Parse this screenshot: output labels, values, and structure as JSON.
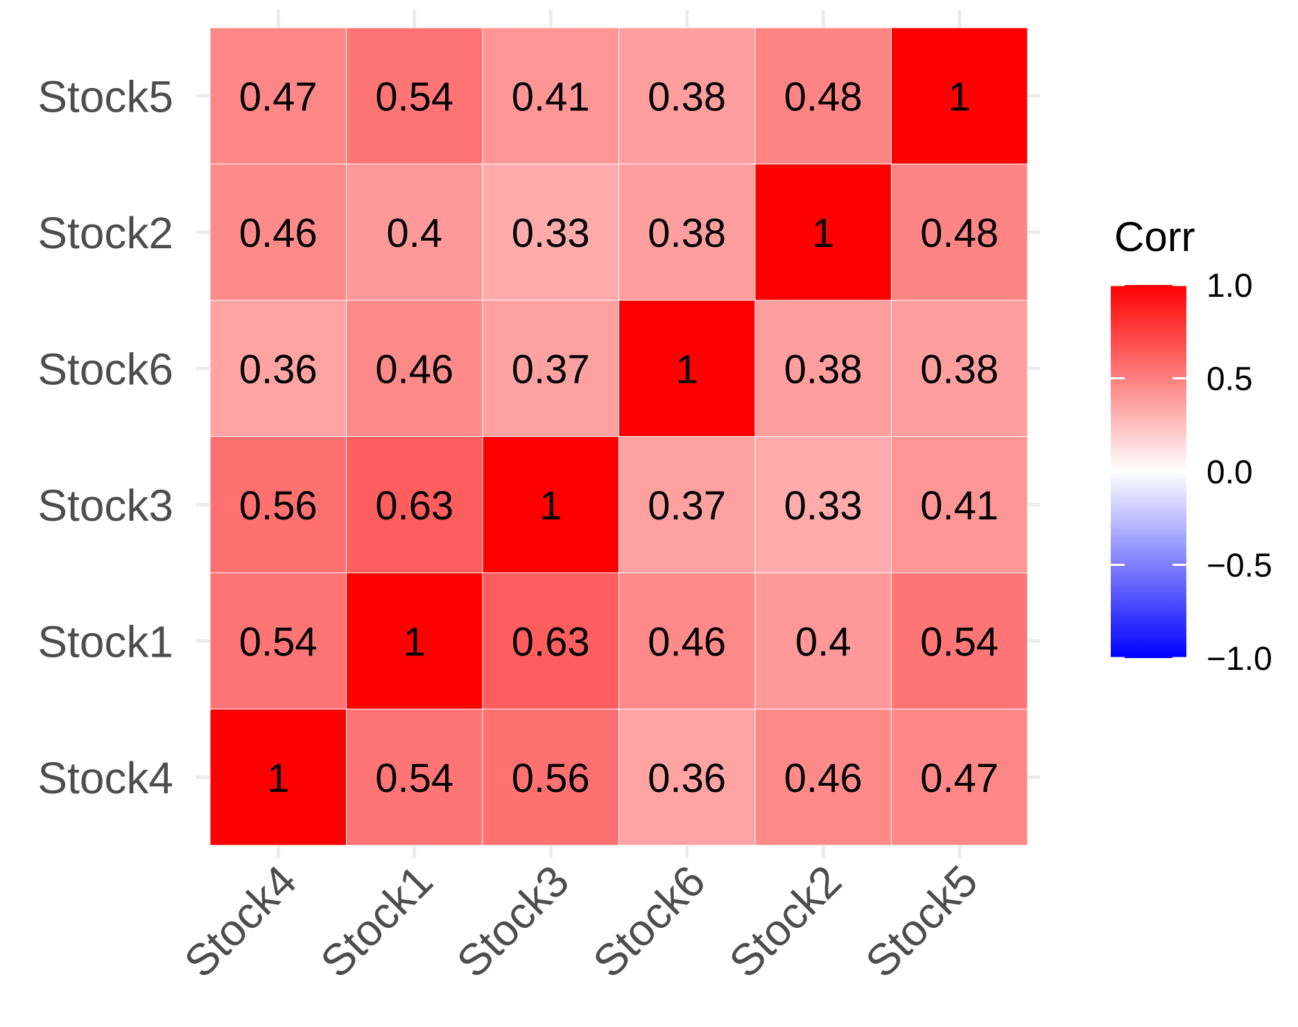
{
  "chart_data": {
    "type": "heatmap",
    "x_categories": [
      "Stock4",
      "Stock1",
      "Stock3",
      "Stock6",
      "Stock2",
      "Stock5"
    ],
    "y_categories": [
      "Stock4",
      "Stock1",
      "Stock3",
      "Stock6",
      "Stock2",
      "Stock5"
    ],
    "matrix": [
      [
        1,
        0.54,
        0.56,
        0.36,
        0.46,
        0.47
      ],
      [
        0.54,
        1,
        0.63,
        0.46,
        0.4,
        0.54
      ],
      [
        0.56,
        0.63,
        1,
        0.37,
        0.33,
        0.41
      ],
      [
        0.36,
        0.46,
        0.37,
        1,
        0.38,
        0.38
      ],
      [
        0.46,
        0.4,
        0.33,
        0.38,
        1,
        0.48
      ],
      [
        0.47,
        0.54,
        0.41,
        0.38,
        0.48,
        1
      ]
    ],
    "labels": [
      [
        "1",
        "0.54",
        "0.56",
        "0.36",
        "0.46",
        "0.47"
      ],
      [
        "0.54",
        "1",
        "0.63",
        "0.46",
        "0.4",
        "0.54"
      ],
      [
        "0.56",
        "0.63",
        "1",
        "0.37",
        "0.33",
        "0.41"
      ],
      [
        "0.36",
        "0.46",
        "0.37",
        "1",
        "0.38",
        "0.38"
      ],
      [
        "0.46",
        "0.4",
        "0.33",
        "0.38",
        "1",
        "0.48"
      ],
      [
        "0.47",
        "0.54",
        "0.41",
        "0.38",
        "0.48",
        "1"
      ]
    ],
    "legend": {
      "title": "Corr",
      "range": [
        -1,
        1
      ],
      "ticks": [
        1.0,
        0.5,
        0.0,
        -0.5,
        -1.0
      ],
      "tick_labels": [
        "1.0",
        "0.5",
        "0.0",
        "−0.5",
        "−1.0"
      ],
      "low_color": "#0000ff",
      "mid_color": "#ffffff",
      "high_color": "#ff0000",
      "placement": "right"
    },
    "grid": true
  }
}
